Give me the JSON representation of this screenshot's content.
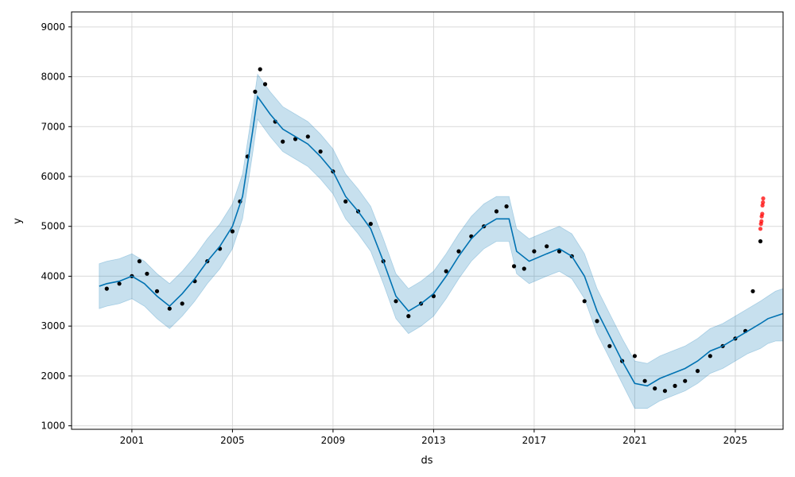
{
  "chart_data": {
    "type": "scatter",
    "title": "",
    "xlabel": "ds",
    "ylabel": "y",
    "xlim": [
      1998.6,
      2026.9
    ],
    "ylim": [
      930,
      9300
    ],
    "x_ticks": [
      2001,
      2005,
      2009,
      2013,
      2017,
      2021,
      2025
    ],
    "x_tick_labels": [
      "2001",
      "2005",
      "2009",
      "2013",
      "2017",
      "2021",
      "2025"
    ],
    "y_ticks": [
      1000,
      2000,
      3000,
      4000,
      5000,
      6000,
      7000,
      8000,
      9000
    ],
    "y_tick_labels": [
      "1000",
      "2000",
      "3000",
      "4000",
      "5000",
      "6000",
      "7000",
      "8000",
      "9000"
    ],
    "grid": true,
    "colors": {
      "observed": "#000000",
      "forecast": "#0072B2",
      "interval": "#0072B2",
      "highlight": "#ff0000"
    },
    "series": [
      {
        "role": "observed",
        "x": [
          2000.0,
          2000.5,
          2001.0,
          2001.3,
          2001.6,
          2002.0,
          2002.5,
          2003.0,
          2003.5,
          2004.0,
          2004.5,
          2005.0,
          2005.3,
          2005.6,
          2005.9,
          2006.1,
          2006.3,
          2006.7,
          2007.0,
          2007.5,
          2008.0,
          2008.5,
          2009.0,
          2009.5,
          2010.0,
          2010.5,
          2011.0,
          2011.5,
          2012.0,
          2012.5,
          2013.0,
          2013.5,
          2014.0,
          2014.5,
          2015.0,
          2015.5,
          2015.9,
          2016.2,
          2016.6,
          2017.0,
          2017.5,
          2018.0,
          2018.5,
          2019.0,
          2019.5,
          2020.0,
          2020.5,
          2021.0,
          2021.4,
          2021.8,
          2022.2,
          2022.6,
          2023.0,
          2023.5,
          2024.0,
          2024.5,
          2025.0,
          2025.4,
          2025.7,
          2026.0
        ],
        "y": [
          3750,
          3850,
          4000,
          4300,
          4050,
          3700,
          3350,
          3450,
          3900,
          4300,
          4550,
          4900,
          5500,
          6400,
          7700,
          8150,
          7850,
          7100,
          6700,
          6750,
          6800,
          6500,
          6100,
          5500,
          5300,
          5050,
          4300,
          3500,
          3200,
          3450,
          3600,
          4100,
          4500,
          4800,
          5000,
          5300,
          5400,
          4200,
          4150,
          4500,
          4600,
          4500,
          4400,
          3500,
          3100,
          2600,
          2300,
          2400,
          1900,
          1750,
          1700,
          1800,
          1900,
          2100,
          2400,
          2600,
          2750,
          2900,
          3700,
          4700
        ]
      },
      {
        "role": "highlight",
        "x": [
          2026.0,
          2026.02,
          2026.04,
          2026.05,
          2026.07,
          2026.08,
          2026.1,
          2026.11
        ],
        "y": [
          4950,
          5050,
          5100,
          5200,
          5250,
          5420,
          5480,
          5560
        ]
      },
      {
        "role": "forecast",
        "x": [
          1999.7,
          2000.0,
          2000.5,
          2001.0,
          2001.5,
          2002.0,
          2002.5,
          2003.0,
          2003.5,
          2004.0,
          2004.5,
          2005.0,
          2005.4,
          2005.8,
          2006.0,
          2006.5,
          2007.0,
          2007.5,
          2008.0,
          2008.5,
          2009.0,
          2009.5,
          2010.0,
          2010.5,
          2011.0,
          2011.5,
          2012.0,
          2012.5,
          2013.0,
          2013.5,
          2014.0,
          2014.5,
          2015.0,
          2015.5,
          2016.0,
          2016.3,
          2016.8,
          2017.5,
          2018.0,
          2018.5,
          2019.0,
          2019.5,
          2020.0,
          2020.5,
          2021.0,
          2021.5,
          2022.0,
          2022.5,
          2023.0,
          2023.5,
          2024.0,
          2024.5,
          2025.0,
          2025.5,
          2026.0,
          2026.3,
          2026.6,
          2026.9
        ],
        "y": [
          3800,
          3850,
          3900,
          4000,
          3850,
          3600,
          3400,
          3650,
          3950,
          4300,
          4600,
          5000,
          5600,
          6900,
          7600,
          7250,
          6950,
          6800,
          6650,
          6400,
          6100,
          5600,
          5300,
          4950,
          4300,
          3600,
          3300,
          3450,
          3650,
          4000,
          4400,
          4750,
          5000,
          5150,
          5150,
          4500,
          4300,
          4450,
          4550,
          4400,
          4000,
          3300,
          2800,
          2300,
          1850,
          1800,
          1950,
          2050,
          2150,
          2300,
          2500,
          2600,
          2750,
          2900,
          3050,
          3150,
          3200,
          3250
        ]
      },
      {
        "role": "interval",
        "x": [
          1999.7,
          2000.0,
          2000.5,
          2001.0,
          2001.5,
          2002.0,
          2002.5,
          2003.0,
          2003.5,
          2004.0,
          2004.5,
          2005.0,
          2005.4,
          2005.8,
          2006.0,
          2006.5,
          2007.0,
          2007.5,
          2008.0,
          2008.5,
          2009.0,
          2009.5,
          2010.0,
          2010.5,
          2011.0,
          2011.5,
          2012.0,
          2012.5,
          2013.0,
          2013.5,
          2014.0,
          2014.5,
          2015.0,
          2015.5,
          2016.0,
          2016.3,
          2016.8,
          2017.5,
          2018.0,
          2018.5,
          2019.0,
          2019.5,
          2020.0,
          2020.5,
          2021.0,
          2021.5,
          2022.0,
          2022.5,
          2023.0,
          2023.5,
          2024.0,
          2024.5,
          2025.0,
          2025.5,
          2026.0,
          2026.3,
          2026.6,
          2026.9
        ],
        "lower": [
          3350,
          3400,
          3450,
          3550,
          3400,
          3150,
          2950,
          3200,
          3500,
          3850,
          4150,
          4550,
          5150,
          6450,
          7150,
          6800,
          6500,
          6350,
          6200,
          5950,
          5650,
          5150,
          4850,
          4500,
          3850,
          3150,
          2850,
          3000,
          3200,
          3550,
          3950,
          4300,
          4550,
          4700,
          4700,
          4050,
          3850,
          4000,
          4100,
          3950,
          3550,
          2850,
          2350,
          1850,
          1350,
          1350,
          1500,
          1600,
          1700,
          1850,
          2050,
          2150,
          2300,
          2450,
          2550,
          2650,
          2700,
          2700
        ],
        "upper": [
          4250,
          4300,
          4350,
          4450,
          4300,
          4050,
          3850,
          4100,
          4400,
          4750,
          5050,
          5450,
          6050,
          7350,
          8050,
          7700,
          7400,
          7250,
          7100,
          6850,
          6550,
          6050,
          5750,
          5400,
          4750,
          4050,
          3750,
          3900,
          4100,
          4450,
          4850,
          5200,
          5450,
          5600,
          5600,
          4950,
          4750,
          4900,
          5000,
          4850,
          4450,
          3750,
          3250,
          2750,
          2300,
          2250,
          2400,
          2500,
          2600,
          2750,
          2950,
          3050,
          3200,
          3350,
          3500,
          3600,
          3700,
          3750
        ]
      }
    ]
  }
}
